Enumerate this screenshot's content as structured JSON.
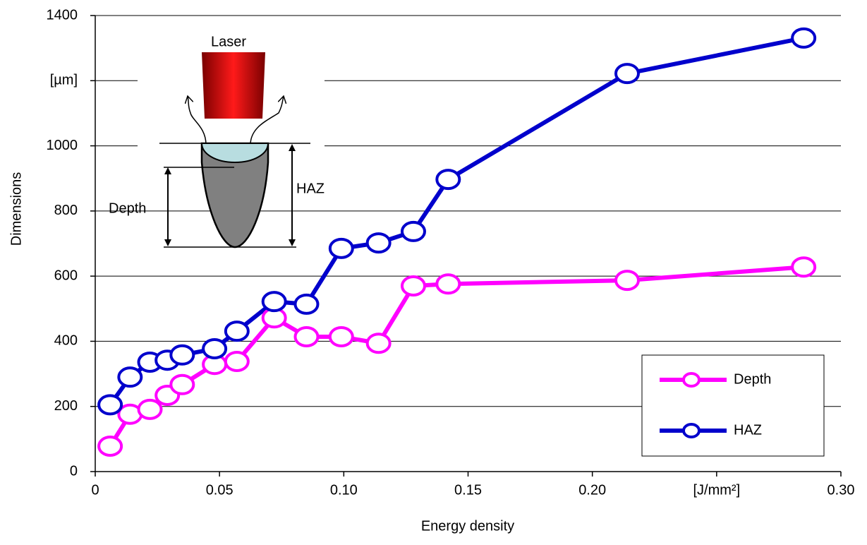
{
  "chart_data": {
    "type": "line",
    "xlabel": "Energy density",
    "ylabel": "Dimensions",
    "annotations": [
      "Laser",
      "Depth",
      "HAZ"
    ],
    "x": [
      0.006,
      0.014,
      0.022,
      0.029,
      0.035,
      0.048,
      0.057,
      0.072,
      0.085,
      0.099,
      0.114,
      0.128,
      0.142,
      0.214,
      0.285
    ],
    "series": [
      {
        "name": "Depth",
        "color": "#ff00ff",
        "values": [
          78,
          176,
          191,
          234,
          267,
          329,
          338,
          472,
          414,
          414,
          394,
          570,
          576,
          587,
          628
        ]
      },
      {
        "name": "HAZ",
        "color": "#0000cc",
        "values": [
          205,
          290,
          336,
          342,
          358,
          377,
          431,
          522,
          514,
          685,
          702,
          737,
          897,
          1222,
          1331
        ]
      }
    ],
    "xlim": [
      0,
      0.3
    ],
    "ylim": [
      0,
      1400
    ],
    "xticks": [
      0,
      0.05,
      {
        "value": 0.1,
        "label": "0.10"
      },
      0.15,
      {
        "value": 0.2,
        "label": "0.20"
      },
      {
        "value": 0.25,
        "label": "[J/mm²]"
      },
      {
        "value": 0.3,
        "label": "0.30"
      }
    ],
    "yticks": [
      0,
      200,
      400,
      600,
      800,
      1000,
      {
        "value": 1200,
        "label": "[µm]"
      },
      1400
    ],
    "grid": true,
    "legend": "lower right"
  }
}
